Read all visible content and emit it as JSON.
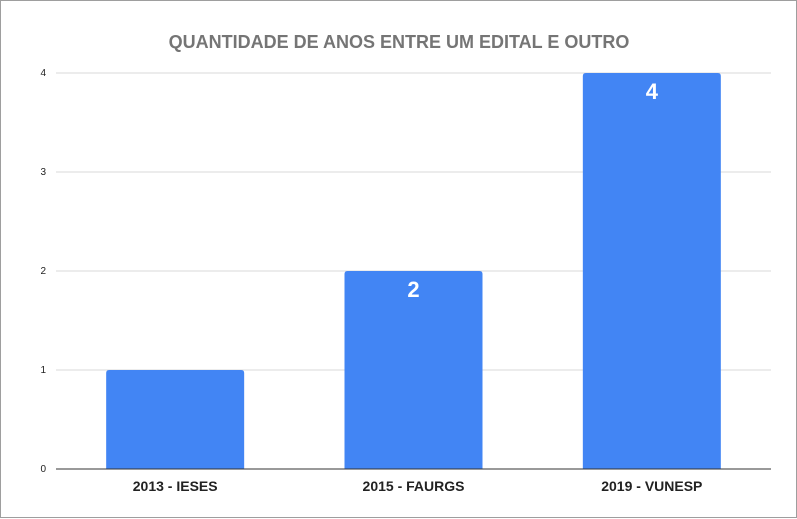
{
  "chart_data": {
    "type": "bar",
    "title": "QUANTIDADE DE ANOS ENTRE UM EDITAL E OUTRO",
    "xlabel": "",
    "ylabel": "",
    "categories": [
      "2013 - IESES",
      "2015 - FAURGS",
      "2019 - VUNESP"
    ],
    "values": [
      1,
      2,
      4
    ],
    "data_labels": [
      "",
      "2",
      "4"
    ],
    "ylim": [
      0,
      4
    ],
    "yticks": [
      "0",
      "1",
      "2",
      "3",
      "4"
    ],
    "grid": true,
    "legend": "none",
    "bar_color": "#4285f4"
  }
}
